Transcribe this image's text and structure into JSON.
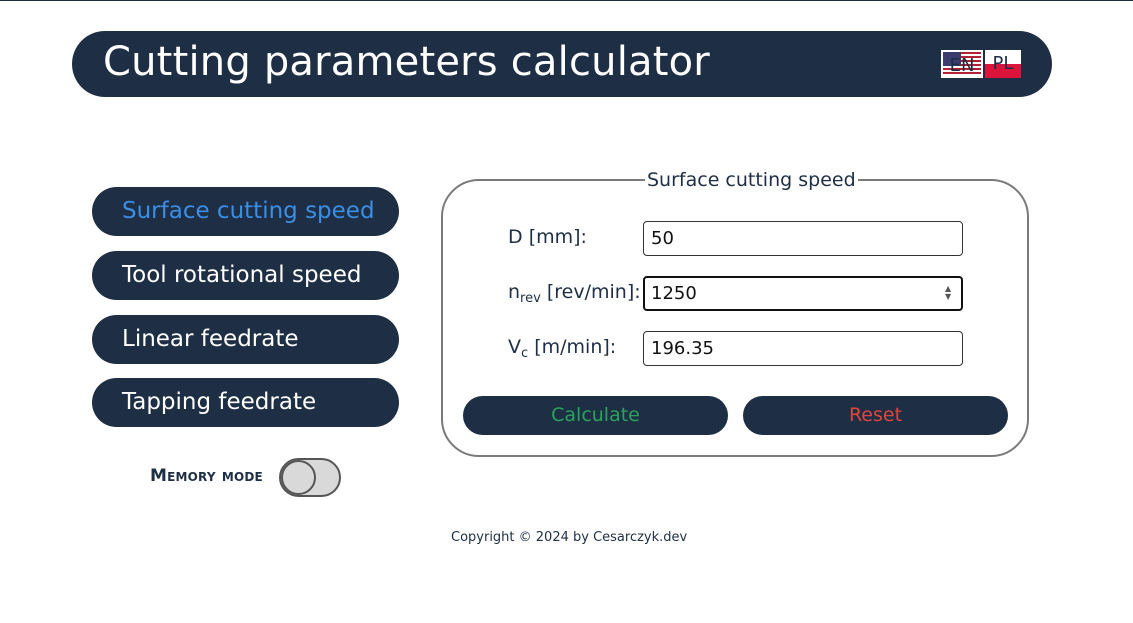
{
  "header": {
    "title": "Cutting parameters calculator",
    "languages": [
      {
        "label": "EN",
        "flag": "us-flag"
      },
      {
        "label": "PL",
        "flag": "pl-flag"
      }
    ]
  },
  "nav": {
    "items": [
      {
        "label": "Surface cutting speed",
        "active": true
      },
      {
        "label": "Tool rotational speed",
        "active": false
      },
      {
        "label": "Linear feedrate",
        "active": false
      },
      {
        "label": "Tapping feedrate",
        "active": false
      }
    ]
  },
  "memory_mode": {
    "label": "Memory mode",
    "enabled": false
  },
  "panel": {
    "legend": "Surface cutting speed",
    "fields": [
      {
        "symbol": "D",
        "subscript": "",
        "unit": "[mm]:",
        "value": "50"
      },
      {
        "symbol": "n",
        "subscript": "rev",
        "unit": "[rev/min]:",
        "value": "1250"
      },
      {
        "symbol": "V",
        "subscript": "c",
        "unit": "[m/min]:",
        "value": "196.35"
      }
    ],
    "calculate_label": "Calculate",
    "reset_label": "Reset"
  },
  "footer": {
    "copyright": "Copyright © 2024 by Cesarczyk.dev"
  },
  "colors": {
    "primary": "#1e2f45",
    "active_nav": "#3a8ee6",
    "calculate": "#2aa35c",
    "reset": "#e0453a"
  }
}
